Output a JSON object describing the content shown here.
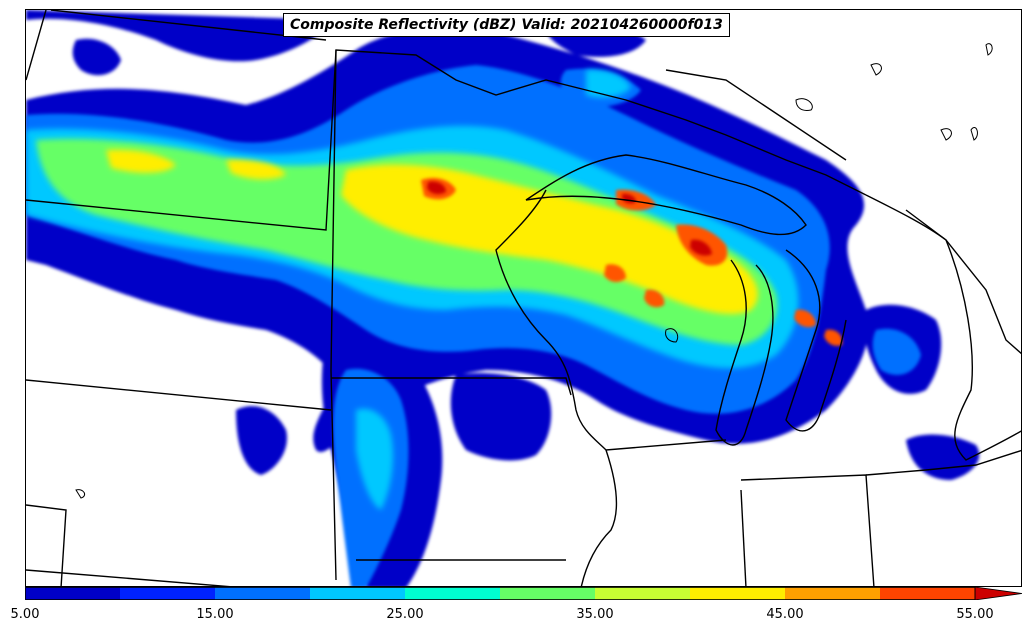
{
  "title": "Composite Reflectivity (dBZ) Valid: 202104260000f013",
  "colorbar": {
    "ticks": [
      "5.00",
      "15.00",
      "25.00",
      "35.00",
      "45.00",
      "55.00"
    ],
    "levels": [
      5,
      10,
      15,
      20,
      25,
      30,
      35,
      40,
      45,
      50,
      55
    ],
    "colors": [
      "#0000c8",
      "#0022ff",
      "#0070ff",
      "#00c8ff",
      "#00ffd0",
      "#66ff66",
      "#c8ff33",
      "#ffee00",
      "#ffa000",
      "#ff4400",
      "#cc0000",
      "#990000"
    ],
    "extend": "max"
  }
}
